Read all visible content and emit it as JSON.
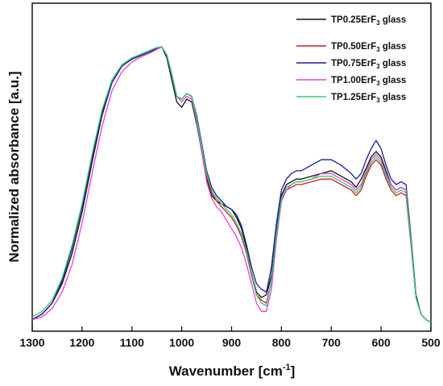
{
  "chart_data": {
    "type": "line",
    "xlabel": "Wavenumber [cm",
    "xlabel_sup": "-1",
    "xlabel_end": "]",
    "ylabel": "Normalized absorbance [a.u.]",
    "xlim": [
      1300,
      500
    ],
    "xticks": [
      1300,
      1200,
      1100,
      1000,
      900,
      800,
      700,
      600,
      500
    ],
    "ylim": [
      0,
      1.0
    ],
    "yticks_shown": false,
    "grid": false,
    "legend_position": "top-right",
    "series": [
      {
        "name": "TP0.25ErF3 glass",
        "label_main": "TP0.25ErF",
        "label_sub": "3",
        "label_end": " glass",
        "color": "#111111",
        "x": [
          1300,
          1280,
          1260,
          1240,
          1220,
          1200,
          1180,
          1160,
          1140,
          1120,
          1100,
          1080,
          1060,
          1050,
          1040,
          1030,
          1020,
          1010,
          1000,
          990,
          980,
          970,
          960,
          950,
          940,
          930,
          920,
          910,
          900,
          890,
          880,
          870,
          860,
          850,
          840,
          830,
          820,
          810,
          800,
          790,
          780,
          770,
          760,
          740,
          720,
          700,
          680,
          660,
          650,
          640,
          630,
          620,
          610,
          600,
          590,
          580,
          570,
          560,
          550,
          540,
          530,
          520,
          510,
          500
        ],
        "y": [
          0.01,
          0.03,
          0.07,
          0.14,
          0.25,
          0.4,
          0.58,
          0.75,
          0.87,
          0.93,
          0.955,
          0.97,
          0.985,
          0.995,
          1.0,
          0.96,
          0.88,
          0.8,
          0.78,
          0.81,
          0.8,
          0.72,
          0.62,
          0.52,
          0.46,
          0.44,
          0.43,
          0.42,
          0.41,
          0.38,
          0.34,
          0.27,
          0.18,
          0.11,
          0.09,
          0.1,
          0.17,
          0.33,
          0.46,
          0.5,
          0.51,
          0.52,
          0.52,
          0.53,
          0.54,
          0.55,
          0.53,
          0.51,
          0.49,
          0.52,
          0.56,
          0.6,
          0.62,
          0.6,
          0.55,
          0.5,
          0.48,
          0.49,
          0.48,
          0.3,
          0.1,
          0.03,
          0.01,
          0.0
        ]
      },
      {
        "name": "TP0.50ErF3 glass",
        "label_main": "TP0.50ErF",
        "label_sub": "3",
        "label_end": " glass",
        "color": "#cc1f1f",
        "x": [
          1300,
          1280,
          1260,
          1240,
          1220,
          1200,
          1180,
          1160,
          1140,
          1120,
          1100,
          1080,
          1060,
          1050,
          1040,
          1030,
          1020,
          1010,
          1000,
          990,
          980,
          970,
          960,
          950,
          940,
          930,
          920,
          910,
          900,
          890,
          880,
          870,
          860,
          850,
          840,
          830,
          820,
          810,
          800,
          790,
          780,
          770,
          760,
          740,
          720,
          700,
          680,
          660,
          650,
          640,
          630,
          620,
          610,
          600,
          590,
          580,
          570,
          560,
          550,
          540,
          530,
          520,
          510,
          500
        ],
        "y": [
          0.01,
          0.03,
          0.07,
          0.15,
          0.27,
          0.42,
          0.6,
          0.76,
          0.87,
          0.93,
          0.955,
          0.97,
          0.985,
          0.995,
          1.0,
          0.97,
          0.9,
          0.82,
          0.81,
          0.83,
          0.82,
          0.74,
          0.63,
          0.53,
          0.47,
          0.44,
          0.42,
          0.4,
          0.38,
          0.35,
          0.31,
          0.25,
          0.17,
          0.1,
          0.08,
          0.07,
          0.15,
          0.32,
          0.44,
          0.48,
          0.49,
          0.5,
          0.5,
          0.51,
          0.52,
          0.52,
          0.5,
          0.48,
          0.46,
          0.48,
          0.53,
          0.57,
          0.59,
          0.57,
          0.52,
          0.48,
          0.46,
          0.47,
          0.46,
          0.28,
          0.09,
          0.03,
          0.01,
          0.0
        ]
      },
      {
        "name": "TP0.75ErF3 glass",
        "label_main": "TP0.75ErF",
        "label_sub": "3",
        "label_end": " glass",
        "color": "#1c1c99",
        "x": [
          1300,
          1280,
          1260,
          1240,
          1220,
          1200,
          1180,
          1160,
          1140,
          1120,
          1100,
          1080,
          1060,
          1050,
          1040,
          1030,
          1020,
          1010,
          1000,
          990,
          980,
          970,
          960,
          950,
          940,
          930,
          920,
          910,
          900,
          890,
          880,
          870,
          860,
          850,
          840,
          830,
          820,
          810,
          800,
          790,
          780,
          770,
          760,
          740,
          720,
          700,
          680,
          660,
          650,
          640,
          630,
          620,
          610,
          600,
          590,
          580,
          570,
          560,
          550,
          540,
          530,
          520,
          510,
          500
        ],
        "y": [
          0.01,
          0.03,
          0.07,
          0.15,
          0.27,
          0.42,
          0.6,
          0.76,
          0.87,
          0.93,
          0.955,
          0.97,
          0.985,
          0.995,
          1.0,
          0.97,
          0.9,
          0.82,
          0.81,
          0.83,
          0.82,
          0.75,
          0.65,
          0.55,
          0.49,
          0.46,
          0.44,
          0.42,
          0.41,
          0.39,
          0.35,
          0.28,
          0.2,
          0.14,
          0.12,
          0.11,
          0.2,
          0.36,
          0.48,
          0.52,
          0.54,
          0.55,
          0.55,
          0.57,
          0.59,
          0.59,
          0.57,
          0.54,
          0.52,
          0.54,
          0.59,
          0.63,
          0.66,
          0.63,
          0.57,
          0.52,
          0.5,
          0.51,
          0.5,
          0.31,
          0.1,
          0.03,
          0.01,
          0.0
        ]
      },
      {
        "name": "TP1.00ErF3 glass",
        "label_main": "TP1.00ErF",
        "label_sub": "3",
        "label_end": " glass",
        "color": "#e040e0",
        "x": [
          1300,
          1280,
          1260,
          1240,
          1220,
          1200,
          1180,
          1160,
          1140,
          1120,
          1100,
          1080,
          1060,
          1050,
          1040,
          1030,
          1020,
          1010,
          1000,
          990,
          980,
          970,
          960,
          950,
          940,
          930,
          920,
          910,
          900,
          890,
          880,
          870,
          860,
          850,
          840,
          830,
          820,
          810,
          800,
          790,
          780,
          770,
          760,
          740,
          720,
          700,
          680,
          660,
          650,
          640,
          630,
          620,
          610,
          600,
          590,
          580,
          570,
          560,
          550,
          540,
          530,
          520,
          510,
          500
        ],
        "y": [
          0.01,
          0.02,
          0.05,
          0.11,
          0.21,
          0.36,
          0.54,
          0.71,
          0.84,
          0.91,
          0.945,
          0.965,
          0.98,
          0.99,
          1.0,
          0.97,
          0.9,
          0.82,
          0.8,
          0.82,
          0.81,
          0.73,
          0.62,
          0.51,
          0.45,
          0.42,
          0.4,
          0.37,
          0.34,
          0.31,
          0.27,
          0.21,
          0.14,
          0.07,
          0.04,
          0.04,
          0.12,
          0.3,
          0.44,
          0.48,
          0.5,
          0.51,
          0.51,
          0.52,
          0.54,
          0.54,
          0.52,
          0.5,
          0.48,
          0.5,
          0.55,
          0.59,
          0.61,
          0.59,
          0.54,
          0.5,
          0.48,
          0.49,
          0.48,
          0.29,
          0.09,
          0.03,
          0.01,
          0.0
        ]
      },
      {
        "name": "TP1.25ErF3 glass",
        "label_main": "TP1.25ErF",
        "label_sub": "3",
        "label_end": " glass",
        "color": "#2ecf6a",
        "x": [
          1300,
          1280,
          1260,
          1240,
          1220,
          1200,
          1180,
          1160,
          1140,
          1120,
          1100,
          1080,
          1060,
          1050,
          1040,
          1030,
          1020,
          1010,
          1000,
          990,
          980,
          970,
          960,
          950,
          940,
          930,
          920,
          910,
          900,
          890,
          880,
          870,
          860,
          850,
          840,
          830,
          820,
          810,
          800,
          790,
          780,
          770,
          760,
          740,
          720,
          700,
          680,
          660,
          650,
          640,
          630,
          620,
          610,
          600,
          590,
          580,
          570,
          560,
          550,
          540,
          530,
          520,
          510,
          500
        ],
        "y": [
          0.02,
          0.04,
          0.08,
          0.16,
          0.28,
          0.43,
          0.61,
          0.77,
          0.88,
          0.935,
          0.96,
          0.975,
          0.99,
          0.997,
          1.0,
          0.97,
          0.9,
          0.82,
          0.81,
          0.83,
          0.82,
          0.74,
          0.64,
          0.54,
          0.48,
          0.45,
          0.43,
          0.41,
          0.39,
          0.36,
          0.32,
          0.26,
          0.18,
          0.1,
          0.07,
          0.06,
          0.15,
          0.32,
          0.45,
          0.49,
          0.5,
          0.51,
          0.51,
          0.52,
          0.53,
          0.53,
          0.51,
          0.49,
          0.47,
          0.49,
          0.54,
          0.58,
          0.6,
          0.58,
          0.53,
          0.49,
          0.47,
          0.48,
          0.47,
          0.29,
          0.09,
          0.03,
          0.01,
          0.0
        ]
      }
    ]
  }
}
